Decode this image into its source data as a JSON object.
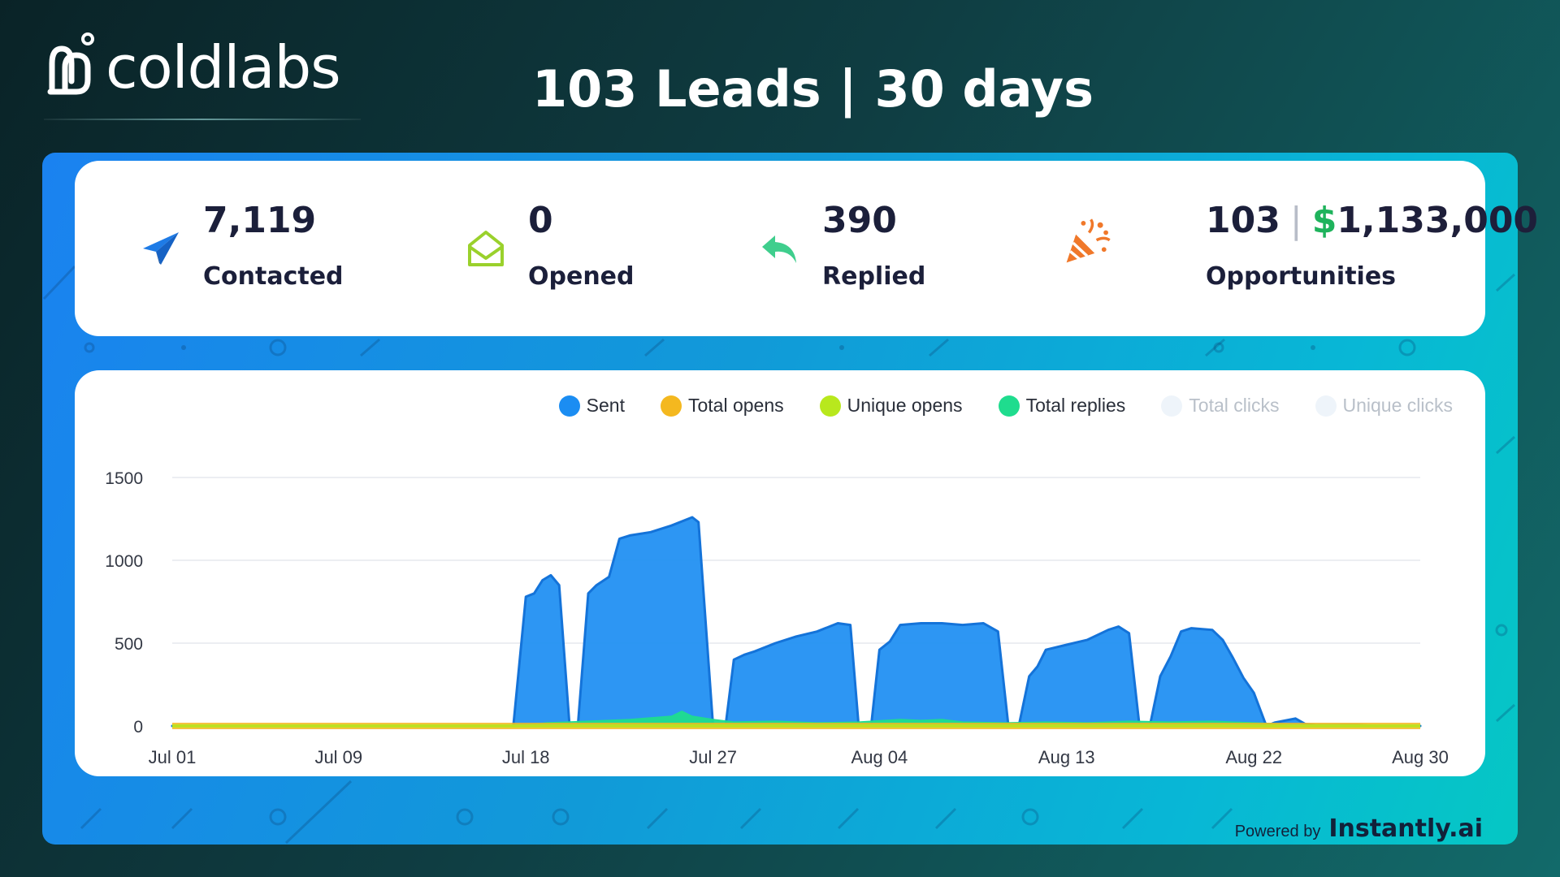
{
  "brand": {
    "name": "coldlabs"
  },
  "header": {
    "title": "103 Leads | 30 days"
  },
  "stats": [
    {
      "id": "contacted",
      "icon": "paper-plane-icon",
      "value": "7,119",
      "label": "Contacted",
      "icon_color": "#1e7be6"
    },
    {
      "id": "opened",
      "icon": "open-envelope-icon",
      "value": "0",
      "label": "Opened",
      "icon_color": "#9ad12c"
    },
    {
      "id": "replied",
      "icon": "reply-arrow-icon",
      "value": "390",
      "label": "Replied",
      "icon_color": "#3fce8d"
    },
    {
      "id": "opportunities",
      "icon": "party-popper-icon",
      "value": "103",
      "separator": "|",
      "dollar": "$",
      "money": "1,133,000",
      "label": "Opportunities",
      "icon_color": "#f0782a"
    }
  ],
  "legend": [
    {
      "label": "Sent",
      "color": "#1b8df2",
      "active": true
    },
    {
      "label": "Total opens",
      "color": "#f4b81f",
      "active": true
    },
    {
      "label": "Unique opens",
      "color": "#b8e81d",
      "active": true
    },
    {
      "label": "Total replies",
      "color": "#1fdc8e",
      "active": true
    },
    {
      "label": "Total clicks",
      "color": "#eef4fa",
      "active": false
    },
    {
      "label": "Unique clicks",
      "color": "#eef4fa",
      "active": false
    }
  ],
  "chart_data": {
    "type": "area",
    "title": "",
    "xlabel": "",
    "ylabel": "",
    "ylim": [
      0,
      1500
    ],
    "yticks": [
      "0",
      "500",
      "1000",
      "1500"
    ],
    "xticks": [
      {
        "label": "Jul 01",
        "day": 0
      },
      {
        "label": "Jul 09",
        "day": 8
      },
      {
        "label": "Jul 18",
        "day": 17
      },
      {
        "label": "Jul 27",
        "day": 26
      },
      {
        "label": "Aug 04",
        "day": 34
      },
      {
        "label": "Aug 13",
        "day": 43
      },
      {
        "label": "Aug 22",
        "day": 52
      },
      {
        "label": "Aug 30",
        "day": 60
      }
    ],
    "x_range_days": [
      0,
      60
    ],
    "grid": true,
    "legend": "top-right",
    "series": [
      {
        "name": "Sent",
        "color": "#1b8df2",
        "points": [
          [
            0,
            0
          ],
          [
            16.4,
            0
          ],
          [
            17,
            780
          ],
          [
            17.4,
            800
          ],
          [
            17.8,
            880
          ],
          [
            18.2,
            910
          ],
          [
            18.6,
            850
          ],
          [
            19.1,
            0
          ],
          [
            19.5,
            0
          ],
          [
            20,
            800
          ],
          [
            20.4,
            850
          ],
          [
            21,
            900
          ],
          [
            21.5,
            1130
          ],
          [
            22,
            1150
          ],
          [
            23,
            1170
          ],
          [
            24,
            1210
          ],
          [
            25,
            1260
          ],
          [
            25.3,
            1230
          ],
          [
            26,
            0
          ],
          [
            26.6,
            0
          ],
          [
            27,
            400
          ],
          [
            27.5,
            430
          ],
          [
            28,
            450
          ],
          [
            29,
            500
          ],
          [
            30,
            540
          ],
          [
            31,
            570
          ],
          [
            32,
            620
          ],
          [
            32.6,
            610
          ],
          [
            33,
            0
          ],
          [
            33.6,
            0
          ],
          [
            34,
            460
          ],
          [
            34.5,
            510
          ],
          [
            35,
            610
          ],
          [
            36,
            620
          ],
          [
            37,
            620
          ],
          [
            38,
            610
          ],
          [
            39,
            620
          ],
          [
            39.7,
            570
          ],
          [
            40.2,
            0
          ],
          [
            40.7,
            0
          ],
          [
            41.2,
            300
          ],
          [
            41.6,
            360
          ],
          [
            42,
            460
          ],
          [
            43,
            490
          ],
          [
            44,
            520
          ],
          [
            45,
            580
          ],
          [
            45.5,
            600
          ],
          [
            46,
            560
          ],
          [
            46.5,
            0
          ],
          [
            47,
            0
          ],
          [
            47.5,
            300
          ],
          [
            48,
            420
          ],
          [
            48.5,
            570
          ],
          [
            49,
            590
          ],
          [
            50,
            580
          ],
          [
            50.5,
            520
          ],
          [
            51,
            410
          ],
          [
            51.5,
            290
          ],
          [
            52,
            200
          ],
          [
            52.6,
            0
          ],
          [
            53,
            20
          ],
          [
            54,
            45
          ],
          [
            54.5,
            10
          ],
          [
            55,
            5
          ],
          [
            56,
            5
          ],
          [
            57,
            5
          ],
          [
            58,
            0
          ],
          [
            60,
            0
          ]
        ]
      },
      {
        "name": "Total replies",
        "color": "#1fdc8e",
        "points": [
          [
            0,
            0
          ],
          [
            16.5,
            0
          ],
          [
            18,
            20
          ],
          [
            20,
            30
          ],
          [
            22,
            40
          ],
          [
            24,
            60
          ],
          [
            24.5,
            90
          ],
          [
            25,
            60
          ],
          [
            26,
            40
          ],
          [
            27,
            25
          ],
          [
            29,
            30
          ],
          [
            31,
            20
          ],
          [
            33,
            25
          ],
          [
            35,
            40
          ],
          [
            36,
            35
          ],
          [
            37,
            40
          ],
          [
            38,
            25
          ],
          [
            40,
            20
          ],
          [
            42,
            25
          ],
          [
            44,
            20
          ],
          [
            46,
            30
          ],
          [
            48,
            25
          ],
          [
            50,
            30
          ],
          [
            52,
            20
          ],
          [
            54,
            10
          ],
          [
            56,
            8
          ],
          [
            60,
            0
          ]
        ]
      },
      {
        "name": "Total opens",
        "color": "#f4b81f",
        "points": [
          [
            0,
            0
          ],
          [
            60,
            0
          ]
        ]
      },
      {
        "name": "Unique opens",
        "color": "#b8e81d",
        "points": [
          [
            0,
            0
          ],
          [
            60,
            0
          ]
        ]
      }
    ]
  },
  "footer": {
    "powered_by": "Powered by",
    "brand": "Instantly.ai"
  }
}
